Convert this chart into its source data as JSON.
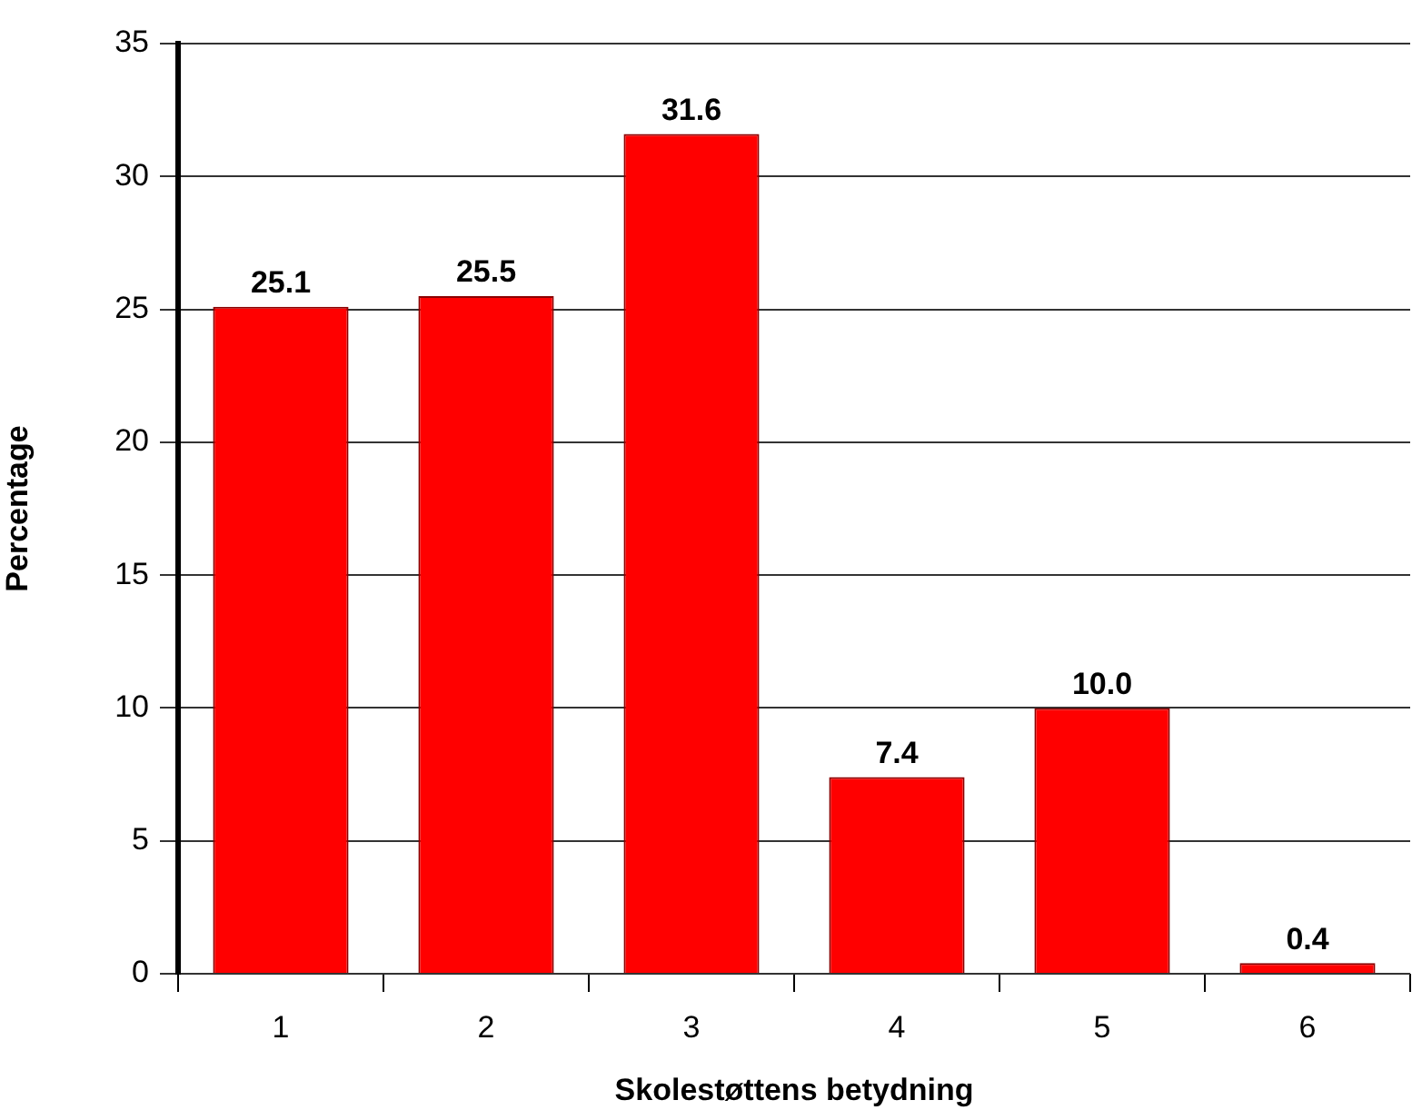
{
  "chart_data": {
    "type": "bar",
    "xlabel": "Skolestøttens betydning",
    "ylabel": "Percentage",
    "categories": [
      "1",
      "2",
      "3",
      "4",
      "5",
      "6"
    ],
    "values": [
      25.1,
      25.5,
      31.6,
      7.4,
      10.0,
      0.4
    ],
    "color": "#ff0000",
    "value_labels": [
      "25.1",
      "25.5",
      "31.6",
      "7.4",
      "10.0",
      "0.4"
    ],
    "ylim": [
      0,
      35
    ],
    "yticks": [
      0,
      5,
      10,
      15,
      20,
      25,
      30,
      35
    ],
    "grid": "y"
  }
}
